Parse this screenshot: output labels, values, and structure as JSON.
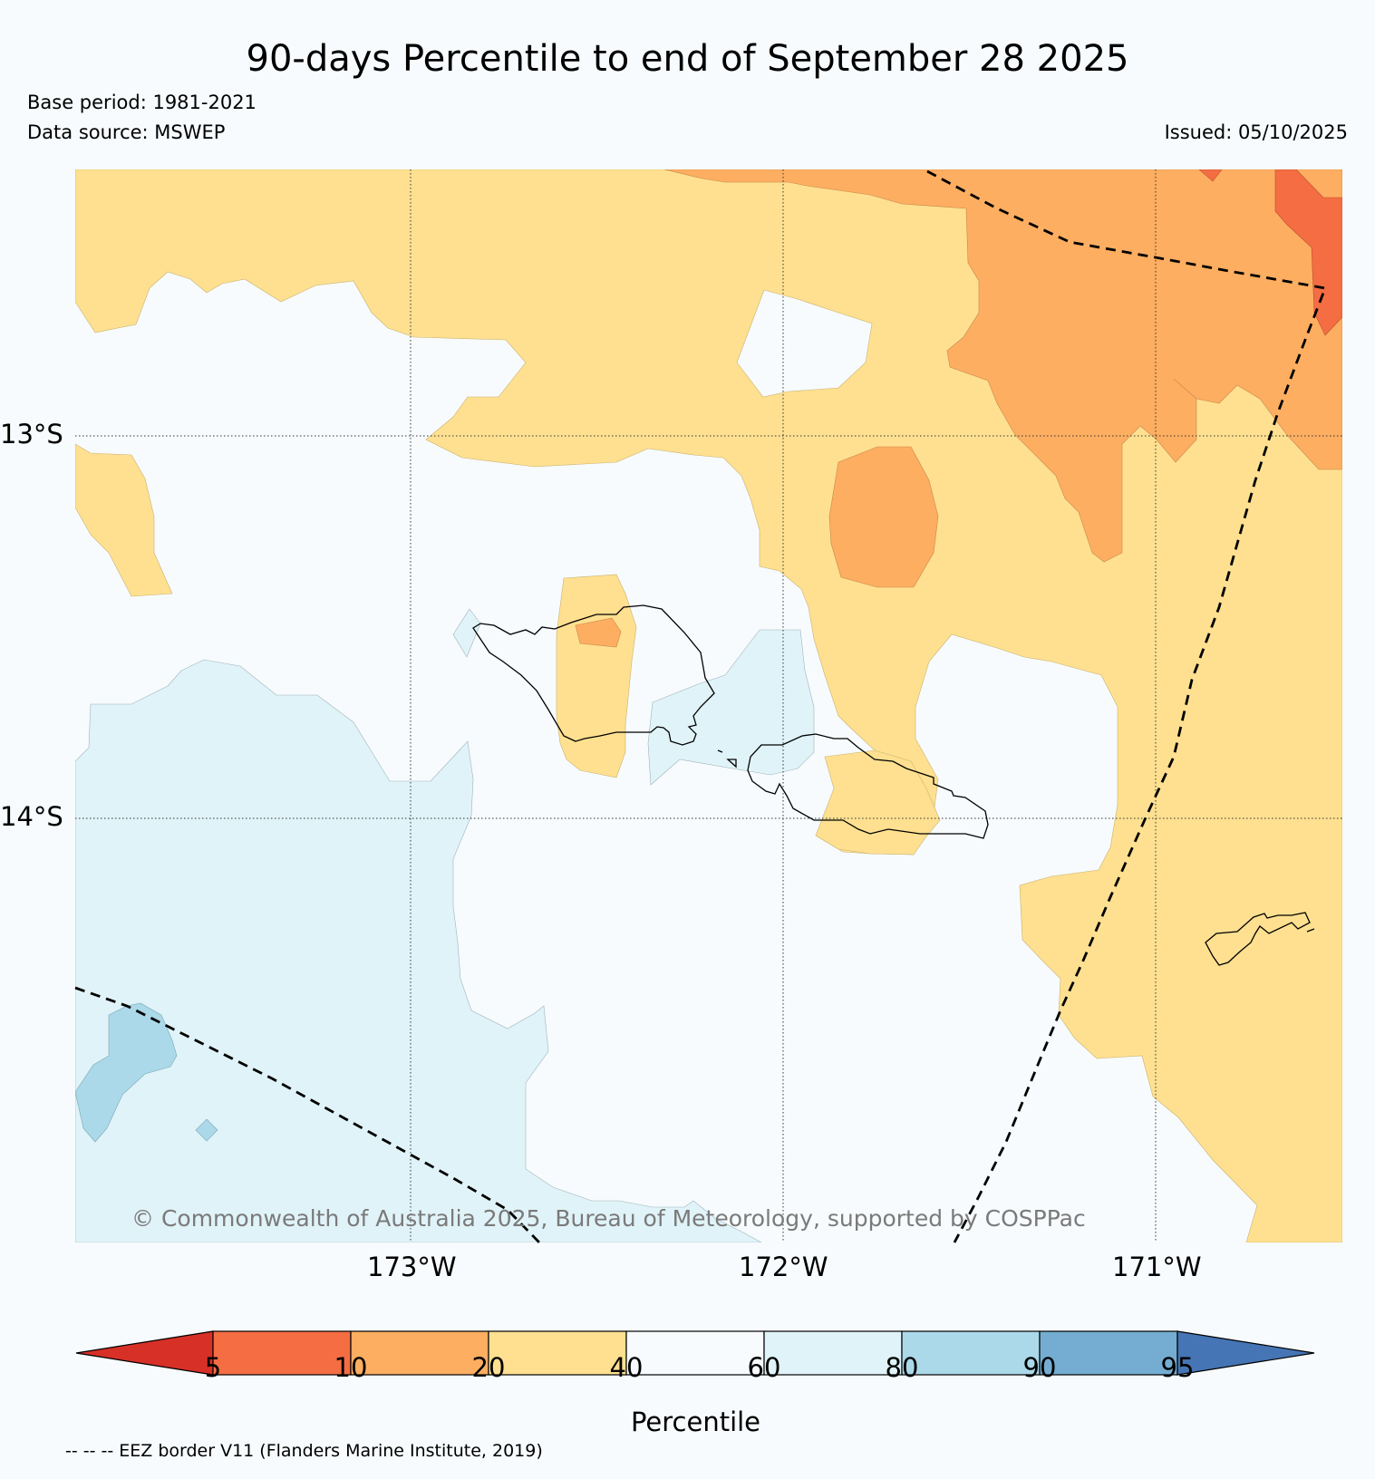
{
  "title": "90-days Percentile to end of September 28 2025",
  "base_period": "Base period: 1981-2021",
  "data_source": "Data source: MSWEP",
  "issued": "Issued: 05/10/2025",
  "lat_labels": [
    "13°S",
    "14°S"
  ],
  "lon_labels": [
    "173°W",
    "172°W",
    "171°W"
  ],
  "copyright": "© Commonwealth of Australia 2025, Bureau of Meteorology, supported by COSPPac",
  "colorbar": {
    "label": "Percentile",
    "ticks": [
      "5",
      "10",
      "20",
      "40",
      "60",
      "80",
      "90",
      "95"
    ],
    "colors": {
      "below_5": "#d73027",
      "5_10": "#f46d43",
      "10_20": "#fdae61",
      "20_40": "#fee090",
      "40_60": "#f7fbfd",
      "60_80": "#e0f3f8",
      "80_90": "#abd9e9",
      "90_95": "#74add1",
      "above_95": "#4575b4"
    }
  },
  "legend_note": "-- -- -- EEZ border V11 (Flanders Marine Institute, 2019)"
}
